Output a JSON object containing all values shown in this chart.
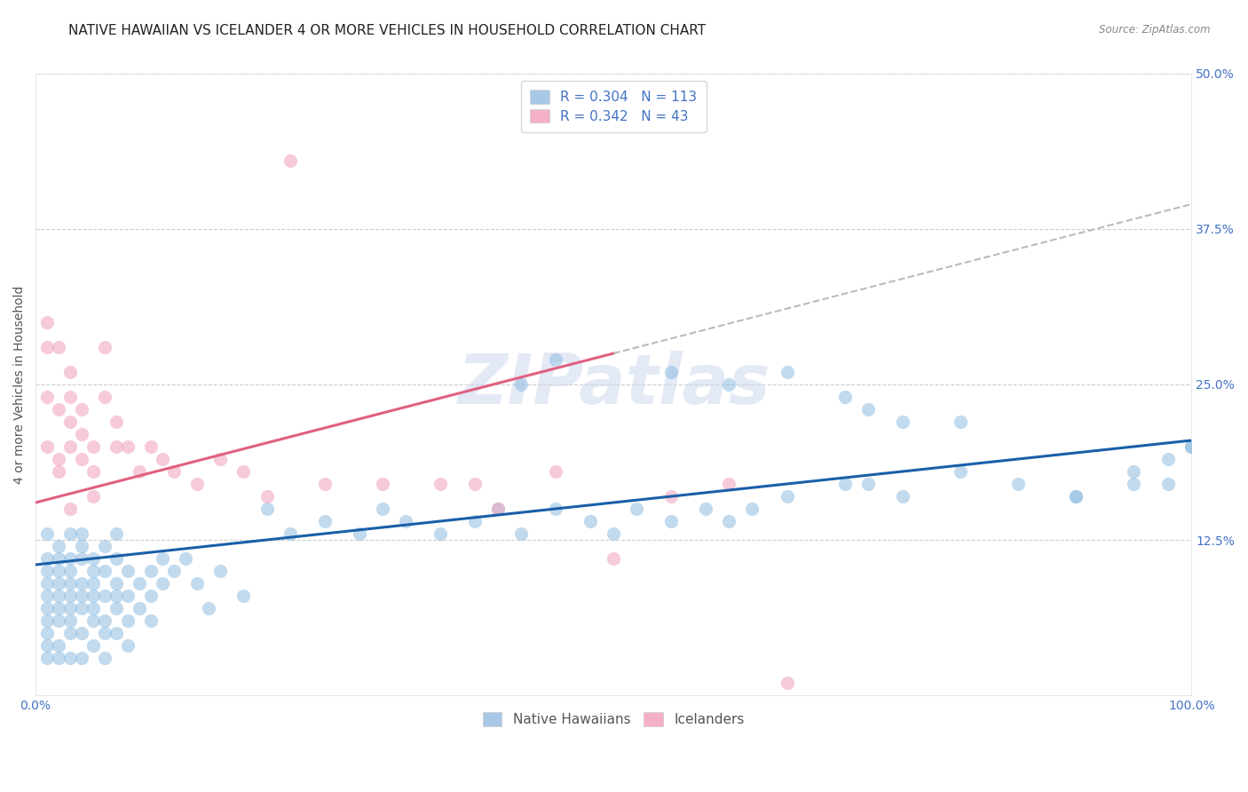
{
  "title": "NATIVE HAWAIIAN VS ICELANDER 4 OR MORE VEHICLES IN HOUSEHOLD CORRELATION CHART",
  "source": "Source: ZipAtlas.com",
  "ylabel": "4 or more Vehicles in Household",
  "xlim": [
    0,
    100
  ],
  "ylim": [
    0,
    50
  ],
  "ytick_vals": [
    12.5,
    25.0,
    37.5,
    50.0
  ],
  "ytick_labels": [
    "12.5%",
    "25.0%",
    "37.5%",
    "50.0%"
  ],
  "legend_series": [
    {
      "label": "Native Hawaiians",
      "color": "#a8c8e8",
      "R": "0.304",
      "N": "113"
    },
    {
      "label": "Icelanders",
      "color": "#f4b0c8",
      "R": "0.342",
      "N": "43"
    }
  ],
  "blue_scatter_x": [
    1,
    1,
    1,
    1,
    1,
    1,
    1,
    1,
    1,
    1,
    2,
    2,
    2,
    2,
    2,
    2,
    2,
    2,
    2,
    3,
    3,
    3,
    3,
    3,
    3,
    3,
    3,
    3,
    4,
    4,
    4,
    4,
    4,
    4,
    4,
    4,
    5,
    5,
    5,
    5,
    5,
    5,
    5,
    6,
    6,
    6,
    6,
    6,
    6,
    7,
    7,
    7,
    7,
    7,
    7,
    8,
    8,
    8,
    8,
    9,
    9,
    10,
    10,
    10,
    11,
    11,
    12,
    13,
    14,
    15,
    16,
    18,
    20,
    22,
    25,
    28,
    30,
    32,
    35,
    38,
    40,
    42,
    45,
    48,
    50,
    52,
    55,
    58,
    60,
    62,
    65,
    70,
    72,
    75,
    80,
    85,
    90,
    95,
    98,
    100,
    42,
    55,
    60,
    65,
    70,
    72,
    75,
    80,
    90,
    95,
    98,
    100,
    45
  ],
  "blue_scatter_y": [
    5,
    7,
    9,
    11,
    13,
    3,
    8,
    6,
    4,
    10,
    6,
    8,
    10,
    12,
    4,
    7,
    3,
    9,
    11,
    5,
    7,
    9,
    11,
    13,
    3,
    8,
    6,
    10,
    7,
    9,
    11,
    13,
    5,
    8,
    3,
    12,
    6,
    8,
    10,
    4,
    7,
    9,
    11,
    5,
    8,
    10,
    6,
    3,
    12,
    7,
    9,
    11,
    5,
    8,
    13,
    6,
    10,
    4,
    8,
    7,
    9,
    6,
    10,
    8,
    9,
    11,
    10,
    11,
    9,
    7,
    10,
    8,
    15,
    13,
    14,
    13,
    15,
    14,
    13,
    14,
    15,
    13,
    15,
    14,
    13,
    15,
    14,
    15,
    14,
    15,
    16,
    17,
    17,
    16,
    18,
    17,
    16,
    18,
    19,
    20,
    25,
    26,
    25,
    26,
    24,
    23,
    22,
    22,
    16,
    17,
    17,
    20,
    27
  ],
  "pink_scatter_x": [
    1,
    1,
    1,
    1,
    2,
    2,
    2,
    2,
    3,
    3,
    3,
    3,
    4,
    4,
    4,
    5,
    5,
    6,
    6,
    7,
    8,
    9,
    10,
    11,
    12,
    14,
    16,
    18,
    20,
    22,
    25,
    30,
    35,
    38,
    40,
    45,
    50,
    55,
    60,
    65,
    3,
    5,
    7
  ],
  "pink_scatter_y": [
    28,
    30,
    20,
    24,
    19,
    23,
    28,
    18,
    24,
    20,
    26,
    15,
    21,
    19,
    23,
    18,
    20,
    24,
    28,
    20,
    20,
    18,
    20,
    19,
    18,
    17,
    19,
    18,
    16,
    43,
    17,
    17,
    17,
    17,
    15,
    18,
    11,
    16,
    17,
    1,
    22,
    16,
    22
  ],
  "blue_line_x0": 0,
  "blue_line_y0": 10.5,
  "blue_line_x1": 100,
  "blue_line_y1": 20.5,
  "pink_line_x0": 0,
  "pink_line_y0": 15.5,
  "pink_line_x1": 50,
  "pink_line_y1": 27.5,
  "dashed_x0": 50,
  "dashed_y0": 27.5,
  "dashed_x1": 100,
  "dashed_y1": 39.5,
  "blue_dot_color": "#90bce0",
  "pink_dot_color": "#f0a0bc",
  "blue_line_color": "#1a5fa8",
  "pink_line_color": "#e06080",
  "dashed_line_color": "#bbbbbb",
  "watermark": "ZIPatlas",
  "bg_color": "#ffffff",
  "title_fontsize": 11,
  "axis_label_fontsize": 10,
  "tick_fontsize": 10,
  "legend_fontsize": 11,
  "scatter_size": 120,
  "scatter_alpha": 0.55
}
